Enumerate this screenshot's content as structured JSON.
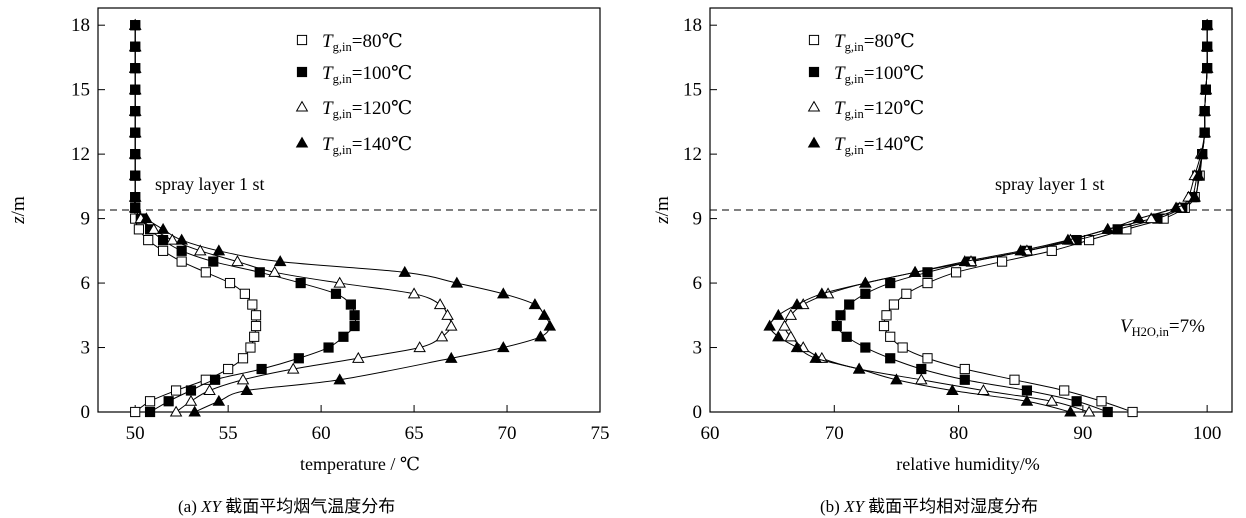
{
  "captions": {
    "a_prefix": "(a) ",
    "a_italic": "XY",
    "a_rest": " 截面平均烟气温度分布",
    "b_prefix": "(b) ",
    "b_italic": "XY",
    "b_rest": " 截面平均相对湿度分布"
  },
  "chart_data": [
    {
      "type": "line",
      "xlabel": "temperature / ℃",
      "ylabel": "z/m",
      "xlim": [
        48,
        75
      ],
      "ylim": [
        0,
        18.8
      ],
      "xticks": [
        50,
        55,
        60,
        65,
        70,
        75
      ],
      "yticks": [
        0,
        3,
        6,
        9,
        12,
        15,
        18
      ],
      "reference_line": {
        "y": 9.4,
        "label": "spray layer 1 st",
        "style": "dashed"
      },
      "legend": {
        "placement": "top-right",
        "inside": true
      },
      "series": [
        {
          "name": "T g,in=80℃",
          "legend_main": "T",
          "legend_sub": "g,in",
          "legend_tail": "=80℃",
          "marker": "square-open",
          "points": [
            [
              50.0,
              0
            ],
            [
              50.8,
              0.5
            ],
            [
              52.2,
              1.0
            ],
            [
              53.8,
              1.5
            ],
            [
              55.0,
              2.0
            ],
            [
              55.8,
              2.5
            ],
            [
              56.2,
              3.0
            ],
            [
              56.4,
              3.5
            ],
            [
              56.5,
              4.0
            ],
            [
              56.5,
              4.5
            ],
            [
              56.3,
              5.0
            ],
            [
              55.9,
              5.5
            ],
            [
              55.1,
              6.0
            ],
            [
              53.8,
              6.5
            ],
            [
              52.5,
              7.0
            ],
            [
              51.5,
              7.5
            ],
            [
              50.7,
              8.0
            ],
            [
              50.2,
              8.5
            ],
            [
              50.0,
              9.0
            ],
            [
              50.0,
              9.5
            ],
            [
              50.0,
              10
            ],
            [
              50.0,
              11
            ],
            [
              50.0,
              12
            ],
            [
              50.0,
              13
            ],
            [
              50.0,
              14
            ],
            [
              50.0,
              15
            ],
            [
              50.0,
              16
            ],
            [
              50.0,
              17
            ],
            [
              50.0,
              18
            ]
          ]
        },
        {
          "name": "T g,in=100℃",
          "legend_main": "T",
          "legend_sub": "g,in",
          "legend_tail": "=100℃",
          "marker": "square-filled",
          "points": [
            [
              50.8,
              0
            ],
            [
              51.8,
              0.5
            ],
            [
              53.0,
              1.0
            ],
            [
              54.3,
              1.5
            ],
            [
              56.8,
              2.0
            ],
            [
              58.8,
              2.5
            ],
            [
              60.4,
              3.0
            ],
            [
              61.2,
              3.5
            ],
            [
              61.8,
              4.0
            ],
            [
              61.8,
              4.5
            ],
            [
              61.6,
              5.0
            ],
            [
              60.8,
              5.5
            ],
            [
              58.9,
              6.0
            ],
            [
              56.7,
              6.5
            ],
            [
              54.2,
              7.0
            ],
            [
              52.5,
              7.5
            ],
            [
              51.5,
              8.0
            ],
            [
              50.8,
              8.5
            ],
            [
              50.3,
              9.0
            ],
            [
              50.0,
              9.5
            ],
            [
              50.0,
              10
            ],
            [
              50.0,
              11
            ],
            [
              50.0,
              12
            ],
            [
              50.0,
              13
            ],
            [
              50.0,
              14
            ],
            [
              50.0,
              15
            ],
            [
              50.0,
              16
            ],
            [
              50.0,
              17
            ],
            [
              50.0,
              18
            ]
          ]
        },
        {
          "name": "T g,in=120℃",
          "legend_main": "T",
          "legend_sub": "g,in",
          "legend_tail": "=120℃",
          "marker": "triangle-open",
          "points": [
            [
              52.2,
              0
            ],
            [
              53.0,
              0.5
            ],
            [
              54.0,
              1.0
            ],
            [
              55.8,
              1.5
            ],
            [
              58.5,
              2.0
            ],
            [
              62.0,
              2.5
            ],
            [
              65.3,
              3.0
            ],
            [
              66.5,
              3.5
            ],
            [
              67.0,
              4.0
            ],
            [
              66.8,
              4.5
            ],
            [
              66.4,
              5.0
            ],
            [
              65.0,
              5.5
            ],
            [
              61.0,
              6.0
            ],
            [
              57.5,
              6.5
            ],
            [
              55.5,
              7.0
            ],
            [
              53.5,
              7.5
            ],
            [
              52.0,
              8.0
            ],
            [
              51.0,
              8.5
            ],
            [
              50.3,
              9.0
            ],
            [
              50.0,
              9.5
            ],
            [
              50.0,
              10
            ],
            [
              50.0,
              11
            ],
            [
              50.0,
              12
            ],
            [
              50.0,
              13
            ],
            [
              50.0,
              14
            ],
            [
              50.0,
              15
            ],
            [
              50.0,
              16
            ],
            [
              50.0,
              17
            ],
            [
              50.0,
              18
            ]
          ]
        },
        {
          "name": "T g,in=140℃",
          "legend_main": "T",
          "legend_sub": "g,in",
          "legend_tail": "=140℃",
          "marker": "triangle-filled",
          "points": [
            [
              53.2,
              0
            ],
            [
              54.5,
              0.5
            ],
            [
              56.0,
              1.0
            ],
            [
              61.0,
              1.5
            ],
            [
              67.0,
              2.5
            ],
            [
              69.8,
              3.0
            ],
            [
              71.8,
              3.5
            ],
            [
              72.3,
              4.0
            ],
            [
              72.0,
              4.5
            ],
            [
              71.5,
              5.0
            ],
            [
              69.8,
              5.5
            ],
            [
              67.3,
              6.0
            ],
            [
              64.5,
              6.5
            ],
            [
              57.8,
              7.0
            ],
            [
              54.5,
              7.5
            ],
            [
              52.5,
              8.0
            ],
            [
              51.5,
              8.5
            ],
            [
              50.6,
              9.0
            ],
            [
              50.0,
              9.5
            ],
            [
              50.0,
              10
            ],
            [
              50.0,
              11
            ],
            [
              50.0,
              12
            ],
            [
              50.0,
              13
            ],
            [
              50.0,
              14
            ],
            [
              50.0,
              15
            ],
            [
              50.0,
              16
            ],
            [
              50.0,
              17
            ],
            [
              50.0,
              18
            ]
          ]
        }
      ]
    },
    {
      "type": "line",
      "xlabel": "relative humidity/%",
      "ylabel": "z/m",
      "xlim": [
        60,
        102
      ],
      "ylim": [
        0,
        18.8
      ],
      "xticks": [
        60,
        70,
        80,
        90,
        100
      ],
      "yticks": [
        0,
        3,
        6,
        9,
        12,
        15,
        18
      ],
      "reference_line": {
        "y": 9.4,
        "label": "spray layer 1 st",
        "style": "dashed"
      },
      "annotation": {
        "main": "V",
        "sub": "H2O,in",
        "tail": "=7%"
      },
      "legend": {
        "placement": "top-left",
        "inside": true
      },
      "series": [
        {
          "name": "T g,in=80℃",
          "legend_main": "T",
          "legend_sub": "g,in",
          "legend_tail": "=80℃",
          "marker": "square-open",
          "points": [
            [
              94.0,
              0
            ],
            [
              91.5,
              0.5
            ],
            [
              88.5,
              1.0
            ],
            [
              84.5,
              1.5
            ],
            [
              80.5,
              2.0
            ],
            [
              77.5,
              2.5
            ],
            [
              75.5,
              3.0
            ],
            [
              74.5,
              3.5
            ],
            [
              74.0,
              4.0
            ],
            [
              74.2,
              4.5
            ],
            [
              74.8,
              5.0
            ],
            [
              75.8,
              5.5
            ],
            [
              77.5,
              6.0
            ],
            [
              79.8,
              6.5
            ],
            [
              83.5,
              7.0
            ],
            [
              87.5,
              7.5
            ],
            [
              90.5,
              8.0
            ],
            [
              93.5,
              8.5
            ],
            [
              96.5,
              9.0
            ],
            [
              98.2,
              9.5
            ],
            [
              99.0,
              10
            ],
            [
              99.4,
              11
            ],
            [
              99.6,
              12
            ],
            [
              99.8,
              13
            ],
            [
              99.8,
              14
            ],
            [
              99.9,
              15
            ],
            [
              100,
              16
            ],
            [
              100,
              17
            ],
            [
              100,
              18
            ]
          ]
        },
        {
          "name": "T g,in=100℃",
          "legend_main": "T",
          "legend_sub": "g,in",
          "legend_tail": "=100℃",
          "marker": "square-filled",
          "points": [
            [
              92.0,
              0
            ],
            [
              89.5,
              0.5
            ],
            [
              85.5,
              1.0
            ],
            [
              80.5,
              1.5
            ],
            [
              77.0,
              2.0
            ],
            [
              74.5,
              2.5
            ],
            [
              72.5,
              3.0
            ],
            [
              71.0,
              3.5
            ],
            [
              70.2,
              4.0
            ],
            [
              70.5,
              4.5
            ],
            [
              71.2,
              5.0
            ],
            [
              72.5,
              5.5
            ],
            [
              74.5,
              6.0
            ],
            [
              77.5,
              6.5
            ],
            [
              81.0,
              7.0
            ],
            [
              85.5,
              7.5
            ],
            [
              89.5,
              8.0
            ],
            [
              92.8,
              8.5
            ],
            [
              96.0,
              9.0
            ],
            [
              98.0,
              9.5
            ],
            [
              98.8,
              10
            ],
            [
              99.2,
              11
            ],
            [
              99.6,
              12
            ],
            [
              99.8,
              13
            ],
            [
              99.8,
              14
            ],
            [
              99.9,
              15
            ],
            [
              100,
              16
            ],
            [
              100,
              17
            ],
            [
              100,
              18
            ]
          ]
        },
        {
          "name": "T g,in=120℃",
          "legend_main": "T",
          "legend_sub": "g,in",
          "legend_tail": "=120℃",
          "marker": "triangle-open",
          "points": [
            [
              90.5,
              0
            ],
            [
              87.5,
              0.5
            ],
            [
              82.0,
              1.0
            ],
            [
              77.0,
              1.5
            ],
            [
              72.0,
              2.0
            ],
            [
              69.0,
              2.5
            ],
            [
              67.5,
              3.0
            ],
            [
              66.5,
              3.5
            ],
            [
              66.0,
              4.0
            ],
            [
              66.5,
              4.5
            ],
            [
              67.5,
              5.0
            ],
            [
              69.5,
              5.5
            ],
            [
              72.5,
              6.0
            ],
            [
              76.5,
              6.5
            ],
            [
              81.0,
              7.0
            ],
            [
              85.5,
              7.5
            ],
            [
              89.0,
              8.0
            ],
            [
              92.0,
              8.5
            ],
            [
              95.5,
              9.0
            ],
            [
              97.8,
              9.5
            ],
            [
              98.5,
              10
            ],
            [
              99.0,
              11
            ],
            [
              99.5,
              12
            ],
            [
              99.8,
              13
            ],
            [
              99.8,
              14
            ],
            [
              99.9,
              15
            ],
            [
              100,
              16
            ],
            [
              100,
              17
            ],
            [
              100,
              18
            ]
          ]
        },
        {
          "name": "T g,in=140℃",
          "legend_main": "T",
          "legend_sub": "g,in",
          "legend_tail": "=140℃",
          "marker": "triangle-filled",
          "points": [
            [
              89.0,
              0
            ],
            [
              85.5,
              0.5
            ],
            [
              79.5,
              1.0
            ],
            [
              75.0,
              1.5
            ],
            [
              72.0,
              2.0
            ],
            [
              68.5,
              2.5
            ],
            [
              67.0,
              3.0
            ],
            [
              65.5,
              3.5
            ],
            [
              64.8,
              4.0
            ],
            [
              65.5,
              4.5
            ],
            [
              67.0,
              5.0
            ],
            [
              69.0,
              5.5
            ],
            [
              72.5,
              6.0
            ],
            [
              76.5,
              6.5
            ],
            [
              80.5,
              7.0
            ],
            [
              85.0,
              7.5
            ],
            [
              88.8,
              8.0
            ],
            [
              92.0,
              8.5
            ],
            [
              94.5,
              9.0
            ],
            [
              97.5,
              9.5
            ],
            [
              99.0,
              10
            ],
            [
              99.3,
              11
            ],
            [
              99.6,
              12
            ],
            [
              99.8,
              13
            ],
            [
              99.8,
              14
            ],
            [
              99.9,
              15
            ],
            [
              100,
              16
            ],
            [
              100,
              17
            ],
            [
              100,
              18
            ]
          ]
        }
      ]
    }
  ]
}
